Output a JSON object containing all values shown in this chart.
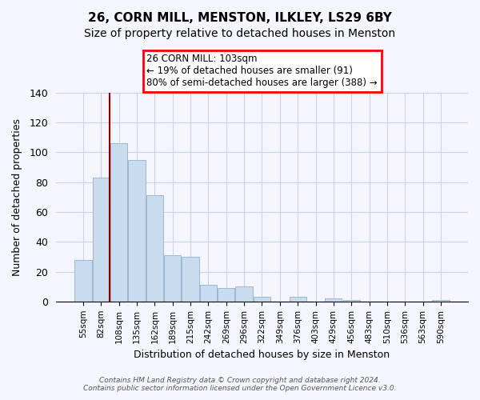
{
  "title": "26, CORN MILL, MENSTON, ILKLEY, LS29 6BY",
  "subtitle": "Size of property relative to detached houses in Menston",
  "xlabel": "Distribution of detached houses by size in Menston",
  "ylabel": "Number of detached properties",
  "bar_color": "#c8dcee",
  "bar_edge_color": "#9ab8d0",
  "categories": [
    "55sqm",
    "82sqm",
    "108sqm",
    "135sqm",
    "162sqm",
    "189sqm",
    "215sqm",
    "242sqm",
    "269sqm",
    "296sqm",
    "322sqm",
    "349sqm",
    "376sqm",
    "403sqm",
    "429sqm",
    "456sqm",
    "483sqm",
    "510sqm",
    "536sqm",
    "563sqm",
    "590sqm"
  ],
  "values": [
    28,
    83,
    106,
    95,
    71,
    31,
    30,
    11,
    9,
    10,
    3,
    0,
    3,
    0,
    2,
    1,
    0,
    0,
    0,
    0,
    1
  ],
  "ylim": [
    0,
    140
  ],
  "yticks": [
    0,
    20,
    40,
    60,
    80,
    100,
    120,
    140
  ],
  "annotation_line1": "26 CORN MILL: 103sqm",
  "annotation_line2": "← 19% of detached houses are smaller (91)",
  "annotation_line3": "80% of semi-detached houses are larger (388) →",
  "footer_line1": "Contains HM Land Registry data © Crown copyright and database right 2024.",
  "footer_line2": "Contains public sector information licensed under the Open Government Licence v3.0.",
  "background_color": "#f5f5ff",
  "grid_color": "#c8d4e8"
}
